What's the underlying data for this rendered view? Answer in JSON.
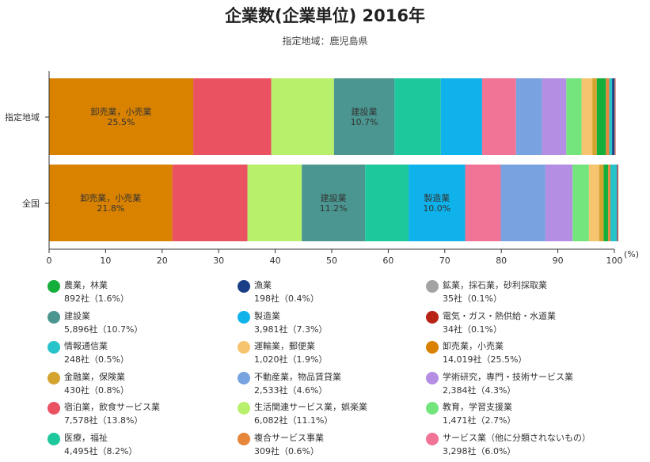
{
  "title": "企業数(企業単位) 2016年",
  "subtitle": "指定地域：鹿児島県",
  "chart_data": {
    "type": "bar",
    "orientation": "horizontal",
    "stacked": true,
    "title": "企業数(企業単位) 2016年",
    "subtitle": "指定地域：鹿児島県",
    "categories": [
      "指定地域",
      "全国"
    ],
    "xlim": [
      0,
      100
    ],
    "xticks": [
      "0",
      "10",
      "20",
      "30",
      "40",
      "50",
      "60",
      "70",
      "80",
      "90",
      "100"
    ],
    "xunit": "(%)",
    "grid": false,
    "legend_position": "bottom",
    "series": [
      {
        "name": "卸売業，小売業",
        "color": "#d98200",
        "values": [
          25.5,
          21.8
        ],
        "labels": [
          "卸売業，小売業\n25.5%",
          "卸売業，小売業\n21.8%"
        ]
      },
      {
        "name": "宿泊業，飲食サービス業",
        "color": "#ea5161",
        "values": [
          13.8,
          13.3
        ]
      },
      {
        "name": "生活関連サービス業，娯楽業",
        "color": "#b8f06c",
        "values": [
          11.1,
          9.6
        ]
      },
      {
        "name": "建設業",
        "color": "#4b9690",
        "values": [
          10.7,
          11.2
        ],
        "labels": [
          "建設業\n10.7%",
          "建設業\n11.2%"
        ]
      },
      {
        "name": "医療，福祉",
        "color": "#1dc89c",
        "values": [
          8.2,
          7.7
        ]
      },
      {
        "name": "製造業",
        "color": "#0fb2ea",
        "values": [
          7.3,
          10.0
        ],
        "labels": [
          "",
          "製造業\n10.0%"
        ]
      },
      {
        "name": "サービス業（他に分類されないもの）",
        "color": "#f17496",
        "values": [
          6.0,
          6.3
        ]
      },
      {
        "name": "不動産業，物品賃貸業",
        "color": "#78a2e0",
        "values": [
          4.6,
          7.9
        ]
      },
      {
        "name": "学術研究，専門・技術サービス業",
        "color": "#b48ee2",
        "values": [
          4.3,
          4.8
        ]
      },
      {
        "name": "教育，学習支援業",
        "color": "#73e57c",
        "values": [
          2.7,
          2.9
        ]
      },
      {
        "name": "運輸業，郵便業",
        "color": "#f6c46e",
        "values": [
          1.9,
          1.8
        ]
      },
      {
        "name": "金融業，保険業",
        "color": "#d4a42e",
        "values": [
          0.8,
          0.8
        ]
      },
      {
        "name": "農業，林業",
        "color": "#15ae3a",
        "values": [
          1.6,
          0.8
        ]
      },
      {
        "name": "複合サービス事業",
        "color": "#e6863a",
        "values": [
          0.6,
          0.4
        ]
      },
      {
        "name": "情報通信業",
        "color": "#27c3ca",
        "values": [
          0.5,
          1.1
        ]
      },
      {
        "name": "漁業",
        "color": "#1a3f87",
        "values": [
          0.4,
          0.1
        ]
      },
      {
        "name": "鉱業，採石業，砂利採取業",
        "color": "#a3a3a3",
        "values": [
          0.1,
          0.1
        ]
      },
      {
        "name": "電気・ガス・熱供給・水道業",
        "color": "#b82316",
        "values": [
          0.1,
          0.1
        ]
      }
    ]
  },
  "legend": [
    {
      "name": "農業，林業",
      "value": "892社（1.6%）",
      "color": "#15ae3a"
    },
    {
      "name": "漁業",
      "value": "198社（0.4%）",
      "color": "#1a3f87"
    },
    {
      "name": "鉱業，採石業，砂利採取業",
      "value": "35社（0.1%）",
      "color": "#a3a3a3"
    },
    {
      "name": "建設業",
      "value": "5,896社（10.7%）",
      "color": "#4b9690"
    },
    {
      "name": "製造業",
      "value": "3,981社（7.3%）",
      "color": "#0fb2ea"
    },
    {
      "name": "電気・ガス・熱供給・水道業",
      "value": "34社（0.1%）",
      "color": "#b82316"
    },
    {
      "name": "情報通信業",
      "value": "248社（0.5%）",
      "color": "#27c3ca"
    },
    {
      "name": "運輸業，郵便業",
      "value": "1,020社（1.9%）",
      "color": "#f6c46e"
    },
    {
      "name": "卸売業，小売業",
      "value": "14,019社（25.5%）",
      "color": "#d98200"
    },
    {
      "name": "金融業，保険業",
      "value": "430社（0.8%）",
      "color": "#d4a42e"
    },
    {
      "name": "不動産業，物品賃貸業",
      "value": "2,533社（4.6%）",
      "color": "#78a2e0"
    },
    {
      "name": "学術研究，専門・技術サービス業",
      "value": "2,384社（4.3%）",
      "color": "#b48ee2"
    },
    {
      "name": "宿泊業，飲食サービス業",
      "value": "7,578社（13.8%）",
      "color": "#ea5161"
    },
    {
      "name": "生活関連サービス業，娯楽業",
      "value": "6,082社（11.1%）",
      "color": "#b8f06c"
    },
    {
      "name": "教育，学習支援業",
      "value": "1,471社（2.7%）",
      "color": "#73e57c"
    },
    {
      "name": "医療，福祉",
      "value": "4,495社（8.2%）",
      "color": "#1dc89c"
    },
    {
      "name": "複合サービス事業",
      "value": "309社（0.6%）",
      "color": "#e6863a"
    },
    {
      "name": "サービス業（他に分類されないもの）",
      "value": "3,298社（6.0%）",
      "color": "#f17496"
    }
  ]
}
